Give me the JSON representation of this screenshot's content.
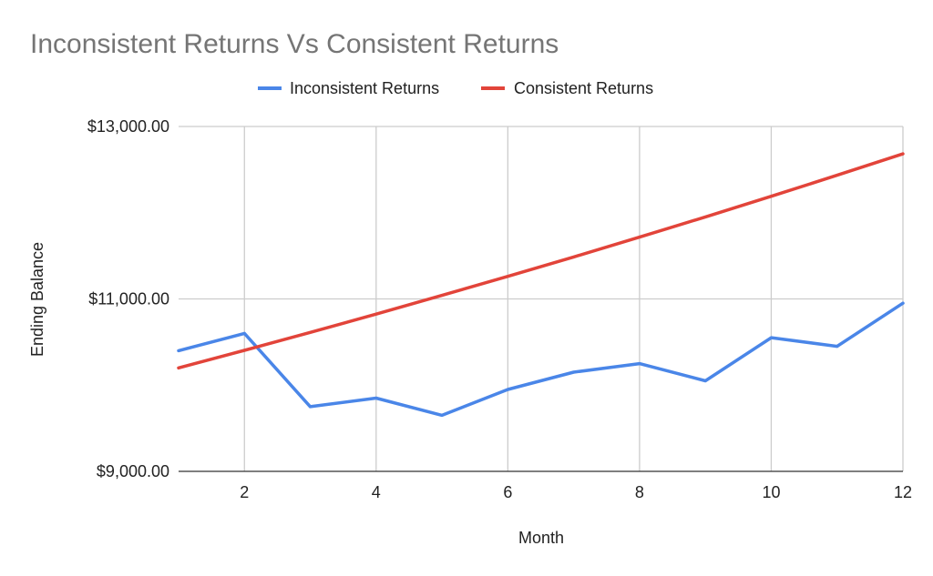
{
  "chart_data": {
    "type": "line",
    "title": "Inconsistent Returns Vs Consistent Returns",
    "xlabel": "Month",
    "ylabel": "Ending Balance",
    "x": [
      1,
      2,
      3,
      4,
      5,
      6,
      7,
      8,
      9,
      10,
      11,
      12
    ],
    "xlim": [
      1,
      12
    ],
    "ylim": [
      9000,
      13000
    ],
    "x_ticks": [
      {
        "value": 2,
        "label": "2"
      },
      {
        "value": 4,
        "label": "4"
      },
      {
        "value": 6,
        "label": "6"
      },
      {
        "value": 8,
        "label": "8"
      },
      {
        "value": 10,
        "label": "10"
      },
      {
        "value": 12,
        "label": "12"
      }
    ],
    "y_ticks": [
      {
        "value": 9000,
        "label": "$9,000.00"
      },
      {
        "value": 11000,
        "label": "$11,000.00"
      },
      {
        "value": 13000,
        "label": "$13,000.00"
      }
    ],
    "series": [
      {
        "name": "Inconsistent Returns",
        "color": "#4a86e8",
        "values": [
          10400,
          10600,
          9750,
          9850,
          9650,
          9950,
          10150,
          10250,
          10050,
          10550,
          10450,
          10950
        ]
      },
      {
        "name": "Consistent Returns",
        "color": "#e2443a",
        "values": [
          10200,
          10404,
          10612,
          10824,
          11041,
          11262,
          11487,
          11717,
          11951,
          12190,
          12434,
          12682
        ]
      }
    ],
    "grid": true,
    "legend_position": "top"
  }
}
